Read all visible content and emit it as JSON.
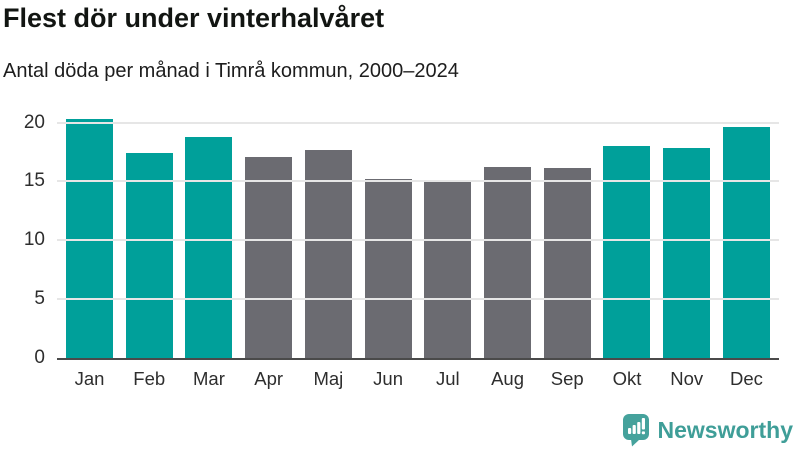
{
  "chart_data": {
    "type": "bar",
    "title": "Flest dör under vinterhalvåret",
    "subtitle": "Antal döda per månad i Timrå kommun, 2000–2024",
    "categories": [
      "Jan",
      "Feb",
      "Mar",
      "Apr",
      "Maj",
      "Jun",
      "Jul",
      "Aug",
      "Sep",
      "Okt",
      "Nov",
      "Dec"
    ],
    "values": [
      20.3,
      17.4,
      18.8,
      17.1,
      17.7,
      15.2,
      15.0,
      16.2,
      16.1,
      18.0,
      17.8,
      19.6
    ],
    "bar_colors": [
      "#00a09a",
      "#00a09a",
      "#00a09a",
      "#6b6b71",
      "#6b6b71",
      "#6b6b71",
      "#6b6b71",
      "#6b6b71",
      "#6b6b71",
      "#00a09a",
      "#00a09a",
      "#00a09a"
    ],
    "xlabel": "",
    "ylabel": "",
    "yticks": [
      0,
      5,
      10,
      15,
      20
    ],
    "ylim": [
      0,
      20.9
    ],
    "grid": "horizontal",
    "legend": "none",
    "highlight_color": "#00a09a",
    "muted_color": "#6b6b71"
  },
  "colors": {
    "background": "#ffffff",
    "title_text": "#121512",
    "axis_text": "#2e2e2e",
    "gridline": "#e6e6e6",
    "baseline": "#4a4a4a",
    "brand": "#3f9e98"
  },
  "branding": {
    "logo_text": "Newsworthy",
    "logo_icon": "bar-chart-speech-bubble-icon"
  }
}
